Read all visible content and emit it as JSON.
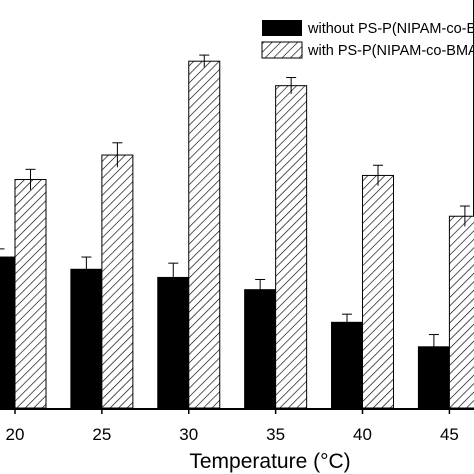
{
  "chart_data": {
    "type": "bar",
    "categories": [
      "20",
      "25",
      "30",
      "35",
      "40",
      "45"
    ],
    "xlabel": "Temperature (°C)",
    "ylabel": "",
    "ylim": [
      0,
      100
    ],
    "grid": false,
    "legend_position": "top-right",
    "series": [
      {
        "name": "without PS-P(NIPAM-co-BMA) NPs",
        "fill": "solid",
        "color": "#000000",
        "values": [
          37,
          34,
          32,
          29,
          21,
          15
        ],
        "errors": [
          2,
          3,
          3.5,
          2.5,
          2,
          3
        ]
      },
      {
        "name": "with PS-P(NIPAM-co-BMA) NPs",
        "fill": "hatched",
        "color": "#000000",
        "values": [
          56,
          62,
          85,
          79,
          57,
          47
        ],
        "errors": [
          2.5,
          3,
          1.5,
          2,
          2.5,
          2.5
        ]
      }
    ]
  }
}
